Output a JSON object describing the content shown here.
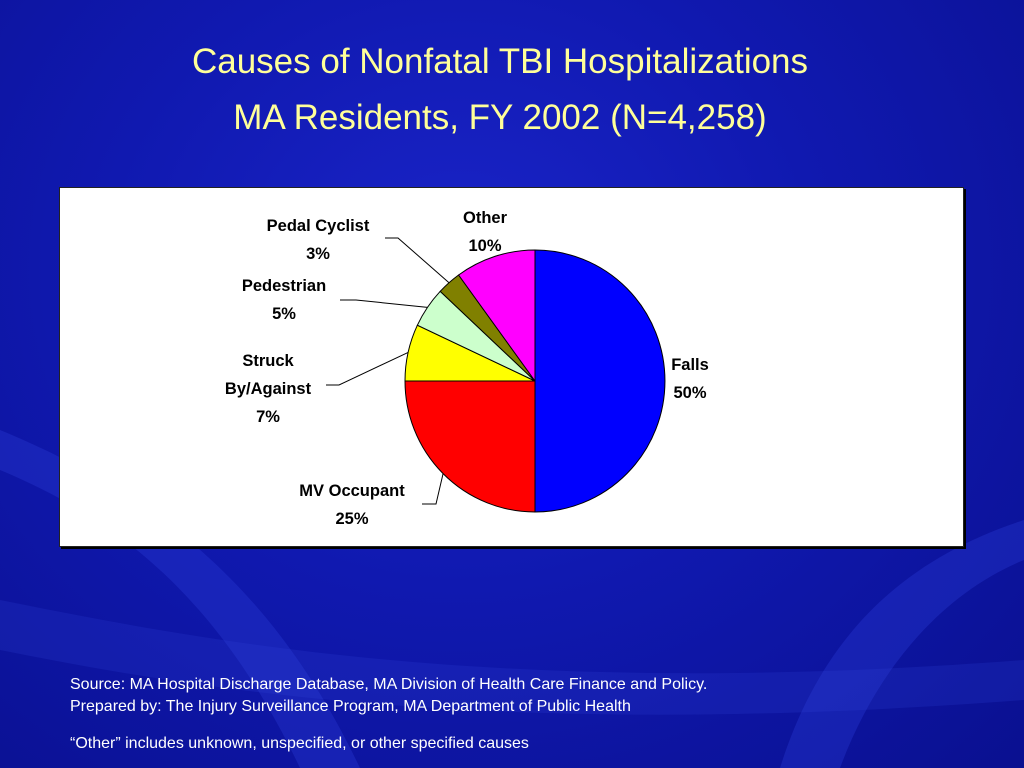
{
  "slide": {
    "title_line1": "Causes of Nonfatal TBI Hospitalizations",
    "title_line2": "MA Residents, FY 2002 (N=4,258)",
    "source": "Source:  MA Hospital Discharge Database, MA Division of Health Care Finance and Policy.",
    "prepared_by": "Prepared by: The Injury Surveillance Program, MA Department of Public Health",
    "note": "“Other” includes unknown, unspecified, or other specified causes"
  },
  "colors": {
    "background": "#1019b0",
    "title_text": "#ffff99",
    "footer_text": "#ffffff"
  },
  "chart_data": {
    "type": "pie",
    "title": "Causes of Nonfatal TBI Hospitalizations MA Residents, FY 2002 (N=4,258)",
    "legend": "none",
    "slices": [
      {
        "label": "Falls",
        "value": 50,
        "value_label": "50%",
        "color": "#0000ff"
      },
      {
        "label": "MV Occupant",
        "value": 25,
        "value_label": "25%",
        "color": "#ff0000"
      },
      {
        "label": "Struck By/Against",
        "label_lines": [
          "Struck",
          "By/Against"
        ],
        "value": 7,
        "value_label": "7%",
        "color": "#ffff00"
      },
      {
        "label": "Pedestrian",
        "value": 5,
        "value_label": "5%",
        "color": "#ccffcc"
      },
      {
        "label": "Pedal Cyclist",
        "value": 3,
        "value_label": "3%",
        "color": "#808000"
      },
      {
        "label": "Other",
        "value": 10,
        "value_label": "10%",
        "color": "#ff00ff"
      }
    ]
  }
}
